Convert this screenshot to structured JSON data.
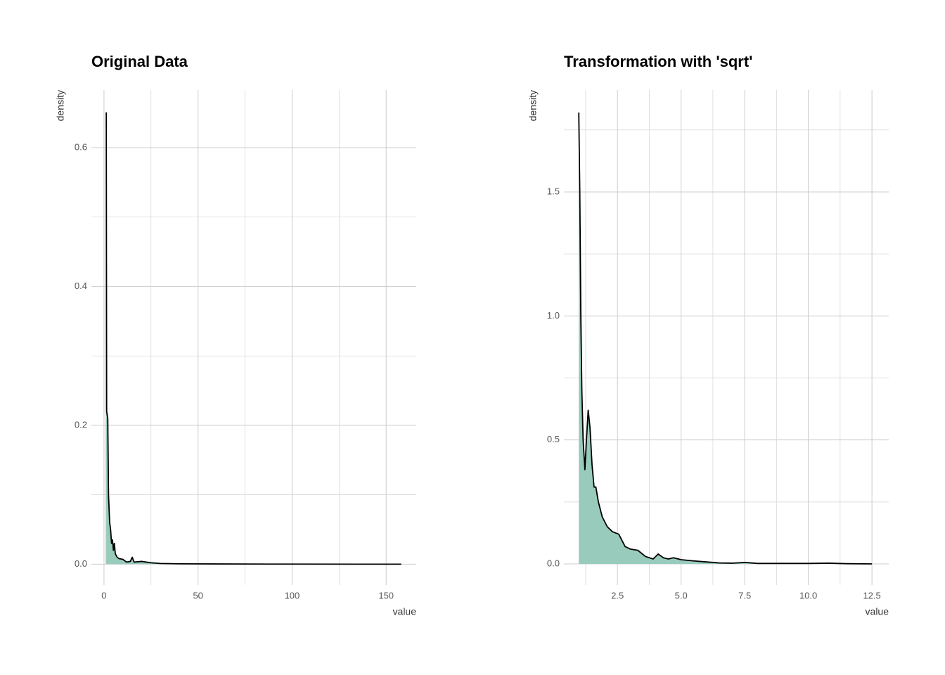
{
  "chart_data": [
    {
      "type": "density",
      "title": "Original Data",
      "x_label": "value",
      "y_label": "density",
      "fill": "#99cbbd",
      "color": "#000000",
      "grid": true,
      "xlim": [
        -6.7,
        166
      ],
      "ylim": [
        -0.03,
        0.683
      ],
      "xticks": [
        0,
        50,
        100,
        150
      ],
      "x_minor_grid": [
        25,
        75,
        125
      ],
      "yticks": [
        {
          "value": 0,
          "label": "0.0"
        },
        0.2,
        0.4,
        0.6
      ],
      "y_minor_grid": [
        0.1,
        0.3,
        0.5
      ],
      "x": [
        0.9,
        1.2,
        1.4,
        2,
        2.4,
        3,
        3.5,
        4,
        4.5,
        5,
        5.5,
        6,
        7,
        8,
        10,
        12,
        14,
        15,
        16,
        20,
        25,
        30,
        40,
        60,
        100,
        158
      ],
      "values": [
        0.65,
        0.65,
        0.22,
        0.21,
        0.1,
        0.06,
        0.05,
        0.03,
        0.035,
        0.02,
        0.03,
        0.015,
        0.01,
        0.008,
        0.007,
        0.003,
        0.004,
        0.01,
        0.003,
        0.004,
        0.002,
        0.001,
        0.0005,
        0.0003,
        0.0001,
        0
      ]
    },
    {
      "type": "density",
      "title": "Transformation with 'sqrt'",
      "x_label": "value",
      "y_label": "density",
      "fill": "#99cbbd",
      "color": "#000000",
      "grid": true,
      "xlim": [
        0.395,
        13.16
      ],
      "ylim": [
        -0.085,
        1.911
      ],
      "xticks": [
        2.5,
        {
          "value": 5,
          "label": "5.0"
        },
        7.5,
        {
          "value": 10,
          "label": "10.0"
        },
        12.5
      ],
      "x_minor_grid": [
        1.25,
        3.75,
        6.25,
        8.75,
        11.25
      ],
      "yticks": [
        {
          "value": 0,
          "label": "0.0"
        },
        0.5,
        {
          "value": 1,
          "label": "1.0"
        },
        1.5
      ],
      "y_minor_grid": [
        0.25,
        0.75,
        1.25,
        1.75
      ],
      "x": [
        0.98,
        1.02,
        1.06,
        1.1,
        1.15,
        1.22,
        1.28,
        1.35,
        1.42,
        1.5,
        1.58,
        1.65,
        1.75,
        1.9,
        2.1,
        2.3,
        2.55,
        2.8,
        3.0,
        3.3,
        3.6,
        3.9,
        4.1,
        4.3,
        4.5,
        4.7,
        5.0,
        5.5,
        6,
        6.5,
        7,
        7.5,
        8,
        9,
        10,
        10.8,
        11.5,
        12.5
      ],
      "values": [
        1.82,
        1.5,
        1.0,
        0.7,
        0.5,
        0.38,
        0.5,
        0.62,
        0.55,
        0.4,
        0.31,
        0.31,
        0.25,
        0.19,
        0.15,
        0.13,
        0.12,
        0.07,
        0.06,
        0.055,
        0.03,
        0.02,
        0.04,
        0.025,
        0.02,
        0.025,
        0.017,
        0.012,
        0.008,
        0.004,
        0.003,
        0.006,
        0.002,
        0.002,
        0.002,
        0.003,
        0.001,
        0
      ]
    }
  ]
}
